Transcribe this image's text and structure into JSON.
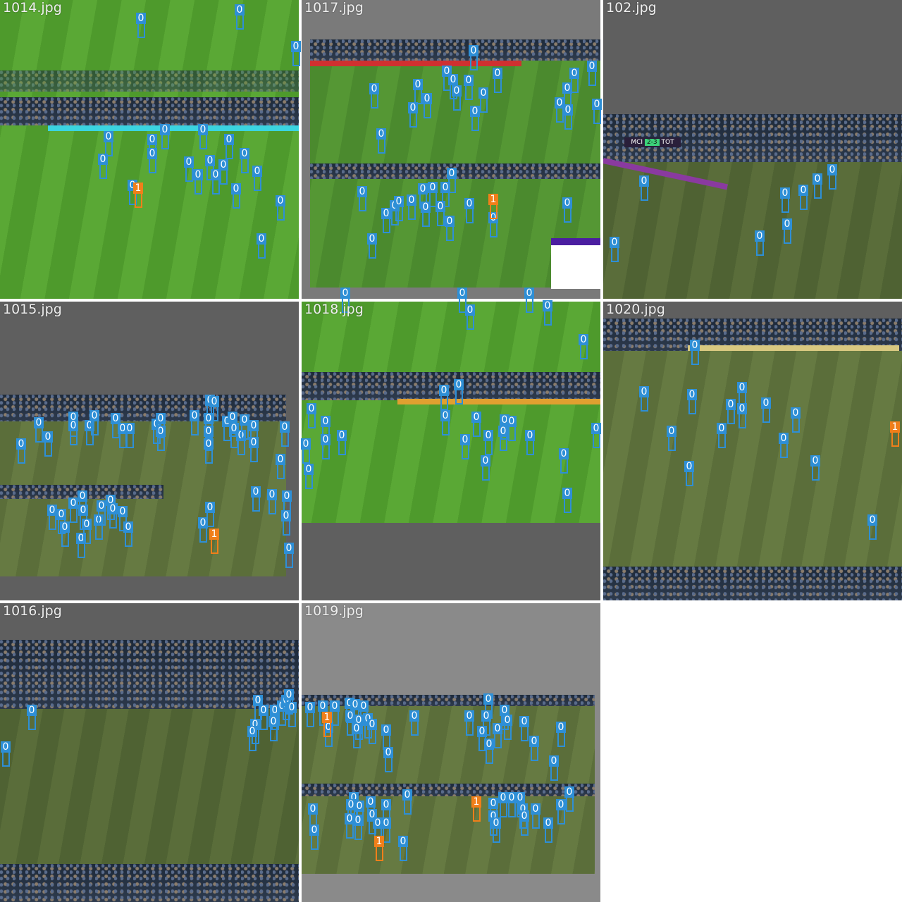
{
  "image": {
    "type": "mosaic of soccer frames with detection boxes",
    "colors": {
      "class0": "#2e8fd6",
      "class1": "#f07f1a",
      "tile_bg": "#5f5f5f",
      "tile_bg_light": "#8a8a8a",
      "background": "#ffffff"
    }
  },
  "tiles": [
    {
      "name": "1014.jpg"
    },
    {
      "name": "1017.jpg"
    },
    {
      "name": "102.jpg"
    },
    {
      "name": "1015.jpg"
    },
    {
      "name": "1018.jpg"
    },
    {
      "name": "1020.jpg"
    },
    {
      "name": "1016.jpg"
    },
    {
      "name": "1019.jpg"
    }
  ],
  "class_labels": {
    "zero": "0",
    "one": "1"
  },
  "scoreboard": {
    "home": "MCI",
    "score": "2-3",
    "away": "TOT",
    "clock": "98:00 +7'"
  }
}
